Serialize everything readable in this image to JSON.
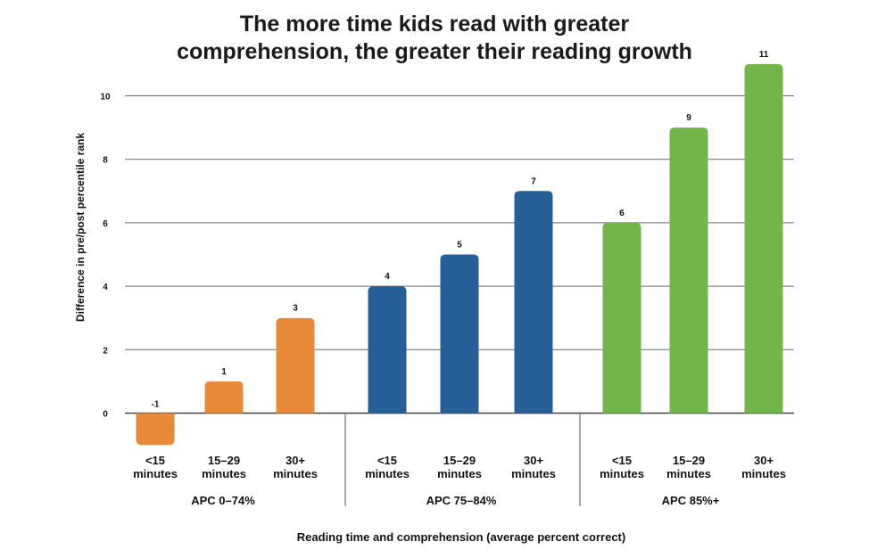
{
  "chart_data": {
    "type": "bar",
    "title_lines": [
      "The more time kids read with greater",
      "comprehension, the greater their reading growth"
    ],
    "xlabel": "Reading time and comprehension (average percent correct)",
    "ylabel": "Difference in pre/post percentile rank",
    "ylim": [
      -1,
      11
    ],
    "yticks": [
      0,
      2,
      4,
      6,
      8,
      10
    ],
    "groups": [
      {
        "name": "APC 0–74%",
        "color": "#E8893A",
        "bars": [
          {
            "label_lines": [
              "<15",
              "minutes"
            ],
            "value": -1
          },
          {
            "label_lines": [
              "15–29",
              "minutes"
            ],
            "value": 1
          },
          {
            "label_lines": [
              "30+",
              "minutes"
            ],
            "value": 3
          }
        ]
      },
      {
        "name": "APC 75–84%",
        "color": "#265F98",
        "bars": [
          {
            "label_lines": [
              "<15",
              "minutes"
            ],
            "value": 4
          },
          {
            "label_lines": [
              "15–29",
              "minutes"
            ],
            "value": 5
          },
          {
            "label_lines": [
              "30+",
              "minutes"
            ],
            "value": 7
          }
        ]
      },
      {
        "name": "APC 85%+",
        "color": "#72B54B",
        "bars": [
          {
            "label_lines": [
              "<15",
              "minutes"
            ],
            "value": 6
          },
          {
            "label_lines": [
              "15–29",
              "minutes"
            ],
            "value": 9
          },
          {
            "label_lines": [
              "30+",
              "minutes"
            ],
            "value": 11
          }
        ]
      }
    ]
  }
}
